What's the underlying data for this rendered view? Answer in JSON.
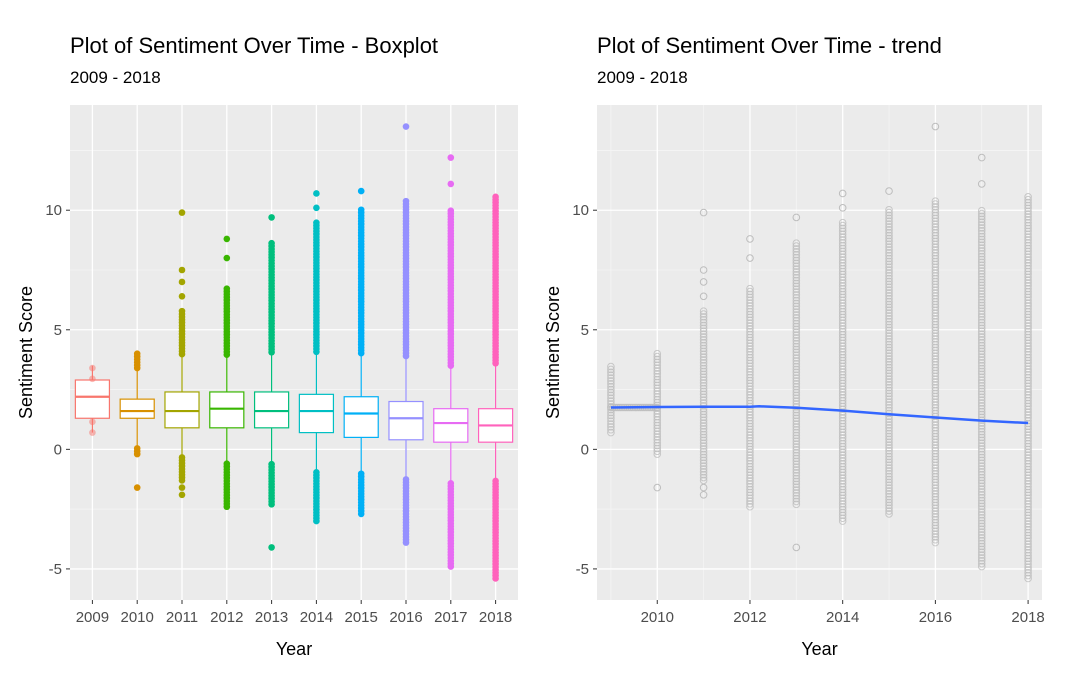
{
  "chart_data": [
    {
      "type": "box",
      "title": "Plot of Sentiment Over Time - Boxplot",
      "subtitle": "2009 - 2018",
      "xlabel": "Year",
      "ylabel": "Sentiment Score",
      "ylim": [
        -6.3,
        14.4
      ],
      "yticks": [
        -5,
        0,
        5,
        10
      ],
      "categories": [
        "2009",
        "2010",
        "2011",
        "2012",
        "2013",
        "2014",
        "2015",
        "2016",
        "2017",
        "2018"
      ],
      "colors": [
        "#F8766D",
        "#D89000",
        "#A3A500",
        "#39B600",
        "#00BF7D",
        "#00BFC4",
        "#00B0F6",
        "#9590FF",
        "#E76BF3",
        "#FF62BC"
      ],
      "boxes": [
        {
          "q1": 1.3,
          "median": 2.2,
          "q3": 2.9,
          "whisker_low": 0.7,
          "whisker_high": 3.5,
          "outlier_range": [
            0.7,
            3.5
          ]
        },
        {
          "q1": 1.3,
          "median": 1.6,
          "q3": 2.1,
          "whisker_low": 0.1,
          "whisker_high": 3.3,
          "outlier_range": [
            -0.2,
            4.1
          ],
          "outliers": [
            -1.6
          ]
        },
        {
          "q1": 0.9,
          "median": 1.6,
          "q3": 2.4,
          "whisker_low": -0.3,
          "whisker_high": 3.9,
          "outlier_range": [
            -1.3,
            5.8
          ],
          "outliers": [
            -1.6,
            -1.9,
            6.4,
            7.0,
            7.5,
            9.9
          ]
        },
        {
          "q1": 0.9,
          "median": 1.7,
          "q3": 2.4,
          "whisker_low": -0.5,
          "whisker_high": 3.9,
          "outlier_range": [
            -2.4,
            6.8
          ],
          "outliers": [
            8.0,
            8.8
          ]
        },
        {
          "q1": 0.9,
          "median": 1.6,
          "q3": 2.4,
          "whisker_low": -0.5,
          "whisker_high": 4.0,
          "outlier_range": [
            -2.3,
            8.7
          ],
          "outliers": [
            -4.1,
            9.7
          ]
        },
        {
          "q1": 0.7,
          "median": 1.6,
          "q3": 2.3,
          "whisker_low": -0.9,
          "whisker_high": 4.0,
          "outlier_range": [
            -3.0,
            9.5
          ],
          "outliers": [
            10.1,
            10.7
          ]
        },
        {
          "q1": 0.5,
          "median": 1.5,
          "q3": 2.2,
          "whisker_low": -1.0,
          "whisker_high": 4.0,
          "outlier_range": [
            -2.7,
            10.1
          ],
          "outliers": [
            10.8
          ]
        },
        {
          "q1": 0.4,
          "median": 1.3,
          "q3": 2.0,
          "whisker_low": -1.2,
          "whisker_high": 3.8,
          "outlier_range": [
            -3.9,
            10.4
          ],
          "outliers": [
            13.5
          ]
        },
        {
          "q1": 0.3,
          "median": 1.1,
          "q3": 1.7,
          "whisker_low": -1.4,
          "whisker_high": 3.5,
          "outlier_range": [
            -4.9,
            10.0
          ],
          "outliers": [
            11.1,
            12.2
          ]
        },
        {
          "q1": 0.3,
          "median": 1.0,
          "q3": 1.7,
          "whisker_low": -1.3,
          "whisker_high": 3.6,
          "outlier_range": [
            -5.4,
            10.6
          ]
        }
      ]
    },
    {
      "type": "scatter",
      "title": "Plot of Sentiment Over Time - trend",
      "subtitle": "2009 - 2018",
      "xlabel": "Year",
      "ylabel": "Sentiment Score",
      "xlim": [
        2008.7,
        2018.3
      ],
      "ylim": [
        -6.3,
        14.4
      ],
      "xticks": [
        2010,
        2012,
        2014,
        2016,
        2018
      ],
      "yticks": [
        -5,
        0,
        5,
        10
      ],
      "point_color": "#bdbdbd",
      "trend_color": "#3366FF",
      "point_columns": [
        {
          "x": 2009.0,
          "range": [
            0.7,
            3.5
          ]
        },
        {
          "x": 2010.0,
          "range": [
            -0.2,
            4.1
          ],
          "extra": [
            -1.6
          ]
        },
        {
          "x": 2011.0,
          "range": [
            -1.3,
            5.8
          ],
          "extra": [
            -1.6,
            -1.9,
            6.4,
            7.0,
            7.5,
            9.9
          ]
        },
        {
          "x": 2012.0,
          "range": [
            -2.4,
            6.8
          ],
          "extra": [
            8.0,
            8.8
          ]
        },
        {
          "x": 2013.0,
          "range": [
            -2.3,
            8.7
          ],
          "extra": [
            -4.1,
            9.7
          ]
        },
        {
          "x": 2014.0,
          "range": [
            -3.0,
            9.5
          ],
          "extra": [
            10.1,
            10.7
          ]
        },
        {
          "x": 2015.0,
          "range": [
            -2.7,
            10.1
          ],
          "extra": [
            10.8
          ]
        },
        {
          "x": 2016.0,
          "range": [
            -3.9,
            10.4
          ],
          "extra": [
            13.5
          ]
        },
        {
          "x": 2017.0,
          "range": [
            -4.9,
            10.0
          ],
          "extra": [
            11.1,
            12.2
          ]
        },
        {
          "x": 2018.0,
          "range": [
            -5.4,
            10.6
          ]
        }
      ],
      "trend": {
        "x": [
          2009.0,
          2010.0,
          2011.0,
          2012.0,
          2012.2,
          2013.0,
          2014.0,
          2015.0,
          2016.0,
          2017.0,
          2018.0
        ],
        "y": [
          1.75,
          1.77,
          1.78,
          1.78,
          1.8,
          1.74,
          1.62,
          1.47,
          1.33,
          1.2,
          1.1
        ]
      }
    }
  ]
}
